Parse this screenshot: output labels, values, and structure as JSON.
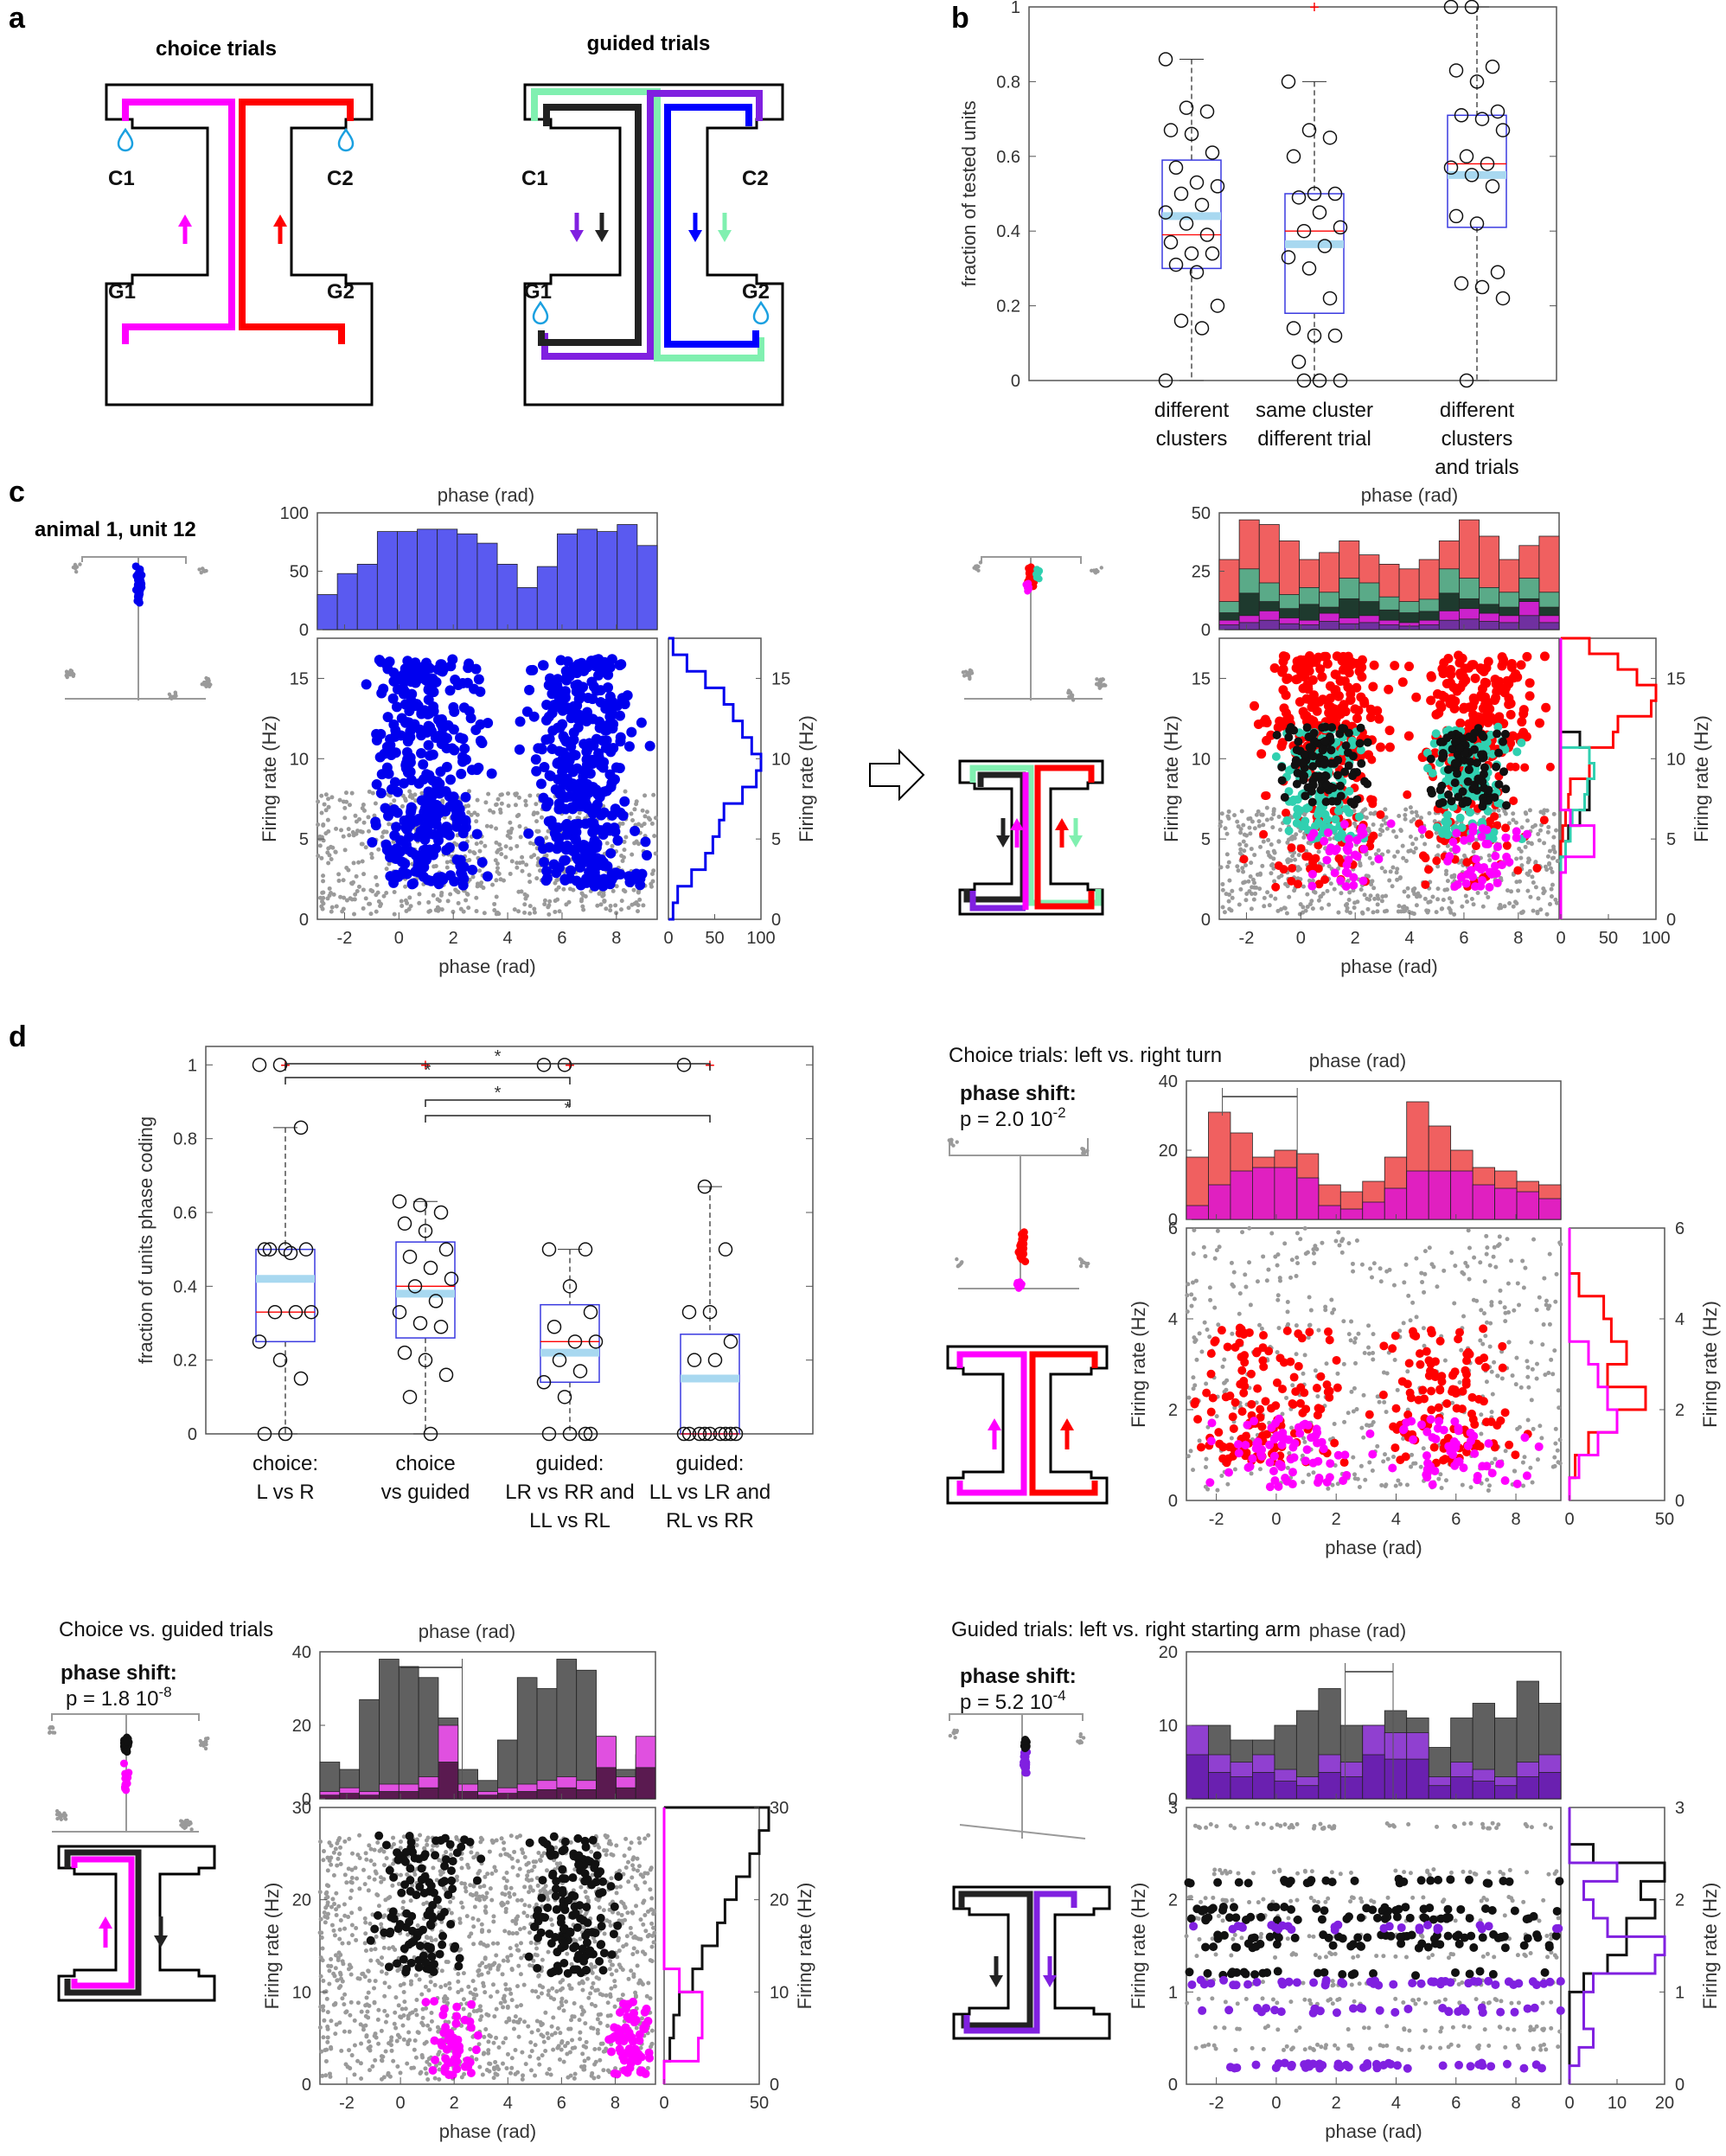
{
  "panel_labels": {
    "a": "a",
    "b": "b",
    "c": "c",
    "d": "d"
  },
  "colors": {
    "magenta": "#ff00ff",
    "red": "#ff0000",
    "blue": "#0000ff",
    "green": "#80f0b0",
    "purple": "#8020e0",
    "black": "#222222",
    "gray": "#9a9a9a",
    "water": "#1aa0e0",
    "hist_blue": "#5a5af0",
    "hist_red": "#f06060",
    "hist_dark": "#1e3a2e",
    "hist_gray": "#606060",
    "hist_purple": "#7030a0"
  },
  "panel_a": {
    "choice_title": "choice trials",
    "guided_title": "guided trials",
    "labels": {
      "c1": "C1",
      "c2": "C2",
      "g1": "G1",
      "g2": "G2"
    }
  },
  "panel_b": {
    "chart_data": {
      "type": "box",
      "ylabel": "fraction of tested units",
      "ylim": [
        0,
        1
      ],
      "yticks": [
        "0",
        "0.2",
        "0.4",
        "0.6",
        "0.8",
        "1"
      ],
      "categories": [
        [
          "different",
          "clusters"
        ],
        [
          "same cluster",
          "different trial"
        ],
        [
          "different",
          "clusters",
          "and trials"
        ]
      ],
      "boxes": [
        {
          "q1": 0.3,
          "median": 0.39,
          "mean": 0.44,
          "q3": 0.59,
          "whisker_low": 0,
          "whisker_high": 0.86,
          "outliers": [],
          "points": [
            0.86,
            0.73,
            0.72,
            0.67,
            0.66,
            0.61,
            0.57,
            0.53,
            0.52,
            0.5,
            0.47,
            0.45,
            0.42,
            0.39,
            0.37,
            0.34,
            0.34,
            0.31,
            0.29,
            0.2,
            0.16,
            0.14,
            0
          ]
        },
        {
          "q1": 0.18,
          "median": 0.4,
          "mean": 0.365,
          "q3": 0.5,
          "whisker_low": 0,
          "whisker_high": 0.8,
          "outliers": [
            1.0
          ],
          "points": [
            0.8,
            0.67,
            0.65,
            0.6,
            0.5,
            0.5,
            0.49,
            0.45,
            0.41,
            0.4,
            0.36,
            0.33,
            0.3,
            0.22,
            0.14,
            0.12,
            0.12,
            0.05,
            0,
            0,
            0
          ]
        },
        {
          "q1": 0.41,
          "median": 0.58,
          "mean": 0.55,
          "q3": 0.71,
          "whisker_low": 0,
          "whisker_high": 1.0,
          "outliers": [],
          "points": [
            1.0,
            1.0,
            0.84,
            0.83,
            0.8,
            0.72,
            0.71,
            0.7,
            0.67,
            0.6,
            0.58,
            0.57,
            0.55,
            0.52,
            0.44,
            0.42,
            0.29,
            0.26,
            0.25,
            0.22,
            0
          ]
        }
      ]
    }
  },
  "panel_c": {
    "left_title": "animal 1, unit 12",
    "top_xlabel": "phase (rad)",
    "bottom_xlabel": "phase (rad)",
    "left": {
      "chart_data": {
        "type": "scatter+histograms",
        "xlim": [
          -3,
          9.5
        ],
        "xticks": [
          "-2",
          "0",
          "2",
          "4",
          "6",
          "8"
        ],
        "ylim": [
          0,
          17.5
        ],
        "yticks": [
          "0",
          "5",
          "10",
          "15"
        ],
        "ylabel": "Firing rate (Hz)",
        "hist_ylim": [
          0,
          100
        ],
        "hist_yticks": [
          "0",
          "50",
          "100"
        ],
        "hist_values": [
          30,
          48,
          56,
          84,
          84,
          86,
          86,
          82,
          74,
          56,
          36,
          54,
          82,
          86,
          84,
          90,
          72
        ],
        "side_xticks": [
          "0",
          "50",
          "100"
        ],
        "side_ylabel": "Firing rate (Hz)"
      }
    },
    "right": {
      "chart_data": {
        "type": "scatter+histograms",
        "xlim": [
          -3,
          9.5
        ],
        "xticks": [
          "-2",
          "0",
          "2",
          "4",
          "6",
          "8"
        ],
        "ylim": [
          0,
          17.5
        ],
        "yticks": [
          "0",
          "5",
          "10",
          "15"
        ],
        "ylabel": "Firing rate (Hz)",
        "hist_ylim": [
          0,
          50
        ],
        "hist_yticks": [
          "0",
          "25",
          "50"
        ],
        "hist_red": [
          30,
          47,
          45,
          38,
          30,
          33,
          38,
          32,
          28,
          26,
          30,
          38,
          47,
          40,
          30,
          36,
          40
        ],
        "hist_green": [
          12,
          26,
          20,
          15,
          18,
          16,
          22,
          20,
          14,
          12,
          13,
          26,
          22,
          18,
          16,
          22,
          16
        ],
        "hist_magenta": [
          4,
          6,
          8,
          5,
          4,
          7,
          5,
          6,
          4,
          3,
          4,
          8,
          9,
          7,
          6,
          12,
          6
        ],
        "side_xticks": [
          "0",
          "50",
          "100"
        ],
        "side_ylabel": "Firing rate (Hz)"
      }
    }
  },
  "panel_d": {
    "chart_data": {
      "type": "box",
      "ylabel": "fraction of units phase coding",
      "ylim": [
        0,
        1.05
      ],
      "yticks": [
        "0",
        "0.2",
        "0.4",
        "0.6",
        "0.8",
        "1"
      ],
      "significance": [
        "*",
        "*",
        "*",
        "*"
      ],
      "categories": [
        [
          "choice:",
          "L vs R"
        ],
        [
          "choice",
          "vs guided"
        ],
        [
          "guided:",
          "LR vs RR and",
          "LL vs RL"
        ],
        [
          "guided:",
          "LL vs LR and",
          "RL vs RR"
        ]
      ],
      "boxes": [
        {
          "q1": 0.25,
          "median": 0.33,
          "mean": 0.42,
          "q3": 0.5,
          "whisker_low": 0,
          "whisker_high": 0.83,
          "outliers": [
            1.0
          ],
          "points": [
            1.0,
            1.0,
            0.83,
            0.5,
            0.5,
            0.5,
            0.5,
            0.49,
            0.33,
            0.33,
            0.33,
            0.25,
            0.2,
            0.15,
            0,
            0
          ]
        },
        {
          "q1": 0.26,
          "median": 0.4,
          "mean": 0.38,
          "q3": 0.52,
          "whisker_low": 0,
          "whisker_high": 0.63,
          "outliers": [
            1.0
          ],
          "points": [
            0.63,
            0.62,
            0.6,
            0.57,
            0.55,
            0.5,
            0.48,
            0.45,
            0.42,
            0.4,
            0.36,
            0.33,
            0.3,
            0.29,
            0.22,
            0.2,
            0.16,
            0.1,
            0
          ]
        },
        {
          "q1": 0.14,
          "median": 0.25,
          "mean": 0.22,
          "q3": 0.35,
          "whisker_low": 0,
          "whisker_high": 0.5,
          "outliers": [
            1.0
          ],
          "points": [
            1.0,
            1.0,
            0.5,
            0.5,
            0.4,
            0.33,
            0.29,
            0.25,
            0.25,
            0.2,
            0.17,
            0.14,
            0.1,
            0,
            0,
            0,
            0
          ]
        },
        {
          "q1": 0,
          "median": 0,
          "mean": 0.15,
          "q3": 0.27,
          "whisker_low": 0,
          "whisker_high": 0.67,
          "outliers": [
            1.0
          ],
          "points": [
            1.0,
            0.67,
            0.5,
            0.33,
            0.33,
            0.25,
            0.2,
            0.2,
            0,
            0,
            0,
            0,
            0,
            0,
            0,
            0,
            0
          ]
        }
      ]
    }
  },
  "sub1": {
    "title": "Choice trials: left vs. right turn",
    "shift_label": "phase shift:",
    "p_text": "p = 2.0 10",
    "p_exp": "-2",
    "top_xlabel": "phase (rad)",
    "bottom_xlabel": "phase (rad)",
    "chart_data": {
      "type": "scatter+histograms",
      "xlim": [
        -3,
        9.5
      ],
      "xticks": [
        "-2",
        "0",
        "2",
        "4",
        "6",
        "8"
      ],
      "ylim": [
        0,
        6
      ],
      "yticks": [
        "0",
        "2",
        "4",
        "6"
      ],
      "ylabel": "Firing rate (Hz)",
      "hist_ylim": [
        0,
        40
      ],
      "hist_yticks": [
        "0",
        "20",
        "40"
      ],
      "hist_red": [
        18,
        31,
        25,
        18,
        20,
        19,
        10,
        8,
        11,
        18,
        34,
        27,
        20,
        15,
        14,
        11,
        10
      ],
      "hist_magenta": [
        4,
        10,
        14,
        15,
        15,
        12,
        4,
        3,
        5,
        9,
        14,
        14,
        14,
        10,
        9,
        8,
        6
      ],
      "side_xticks": [
        "0",
        "50"
      ],
      "side_ylabel": "Firing rate (Hz)"
    }
  },
  "sub2": {
    "title": "Choice vs. guided trials",
    "shift_label": "phase shift:",
    "p_text": "p = 1.8 10",
    "p_exp": "-8",
    "top_xlabel": "phase (rad)",
    "bottom_xlabel": "phase (rad)",
    "chart_data": {
      "type": "scatter+histograms",
      "xlim": [
        -3,
        9.5
      ],
      "xticks": [
        "-2",
        "0",
        "2",
        "4",
        "6",
        "8"
      ],
      "ylim": [
        0,
        30
      ],
      "yticks": [
        "0",
        "10",
        "20",
        "30"
      ],
      "ylabel": "Firing rate (Hz)",
      "hist_ylim": [
        0,
        40
      ],
      "hist_yticks": [
        "0",
        "20",
        "40"
      ],
      "hist_gray": [
        10,
        8,
        27,
        38,
        36,
        33,
        22,
        8,
        5,
        16,
        33,
        30,
        38,
        35,
        17,
        8,
        12
      ],
      "hist_magenta": [
        2,
        3,
        2,
        4,
        4,
        6,
        20,
        4,
        2,
        3,
        4,
        5,
        6,
        5,
        17,
        6,
        17
      ],
      "side_xticks": [
        "0",
        "50"
      ],
      "side_ylabel": "Firing rate (Hz)"
    }
  },
  "sub3": {
    "title": "Guided trials: left vs. right starting arm",
    "shift_label": "phase shift:",
    "p_text": "p = 5.2 10",
    "p_exp": "-4",
    "top_xlabel": "phase (rad)",
    "bottom_xlabel": "phase (rad)",
    "chart_data": {
      "type": "scatter+histograms",
      "xlim": [
        -3,
        9.5
      ],
      "xticks": [
        "-2",
        "0",
        "2",
        "4",
        "6",
        "8"
      ],
      "ylim": [
        0,
        3
      ],
      "yticks": [
        "0",
        "1",
        "2",
        "3"
      ],
      "ylabel": "Firing rate (Hz)",
      "hist_ylim": [
        0,
        20
      ],
      "hist_yticks": [
        "0",
        "10",
        "20"
      ],
      "hist_gray": [
        8,
        10,
        8,
        8,
        10,
        12,
        15,
        10,
        10,
        12,
        11,
        7,
        11,
        13,
        11,
        16,
        13
      ],
      "hist_purple": [
        10,
        6,
        5,
        6,
        4,
        3,
        6,
        5,
        10,
        9,
        9,
        3,
        5,
        4,
        3,
        5,
        6
      ],
      "side_xticks": [
        "0",
        "10",
        "20"
      ],
      "side_ylabel": "Firing rate (Hz)"
    }
  }
}
